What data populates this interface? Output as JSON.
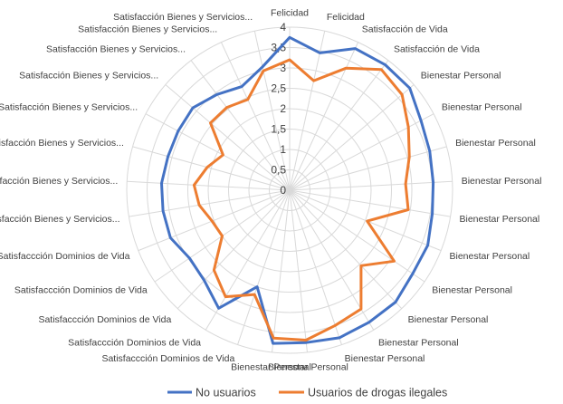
{
  "chart_data": {
    "type": "radar",
    "title": "",
    "categories": [
      "Felicidad",
      "Felicidad",
      "Satisfacción de Vida",
      "Satisfacción de Vida",
      "Bienestar Personal",
      "Bienestar Personal",
      "Bienestar Personal",
      "Bienestar Personal",
      "Bienestar Personal",
      "Bienestar Personal",
      "Bienestar Personal",
      "Bienestar Personal",
      "Bienestar Personal",
      "Bienestar Personal",
      "Bienestar Personal",
      "Bienestar Personal",
      "Satisfaccción Dominios de Vida",
      "Satisfaccción Dominios de Vida",
      "Satisfaccción Dominios de Vida",
      "Satisfaccción Dominios de Vida",
      "Satisfaccción Dominios de Vida",
      "Satisfacción Bienes y Servicios...",
      "Satisfacción Bienes y Servicios...",
      "Satisfacción Bienes y Servicios...",
      "Satisfacción Bienes y Servicios...",
      "Satisfacción Bienes y Servicios...",
      "Satisfacción Bienes y Servicios...",
      "Satisfacción Bienes y Servicios...",
      "Satisfacción Bienes y Servicios..."
    ],
    "tick_values": [
      0,
      0.5,
      1,
      1.5,
      2,
      2.5,
      3,
      3.5,
      4
    ],
    "tick_labels": [
      "0",
      "0,5",
      "1",
      "1,5",
      "2",
      "2,5",
      "3",
      "3,5",
      "4"
    ],
    "rmax": 4,
    "grid": true,
    "legend_position": "bottom",
    "series": [
      {
        "name": "No usuarios",
        "color": "#4472C4",
        "values": [
          3.75,
          3.45,
          3.83,
          3.87,
          3.87,
          3.65,
          3.57,
          3.53,
          3.55,
          3.65,
          3.65,
          3.78,
          3.78,
          3.82,
          3.76,
          3.78,
          2.5,
          3.38,
          3.05,
          2.97,
          3.15,
          3.15,
          3.15,
          3.1,
          3.1,
          3.12,
          2.95,
          2.8,
          3.1
        ]
      },
      {
        "name": "Usuarios de drogas ilegales",
        "color": "#ED7D31",
        "values": [
          3.2,
          2.75,
          3.3,
          3.72,
          3.62,
          3.3,
          3.05,
          2.85,
          2.95,
          2.05,
          3.1,
          2.55,
          3.4,
          3.5,
          3.7,
          3.65,
          2.7,
          3.05,
          2.7,
          2.0,
          2.05,
          2.25,
          2.35,
          2.1,
          1.85,
          2.55,
          2.55,
          2.45,
          3.0
        ]
      }
    ]
  }
}
